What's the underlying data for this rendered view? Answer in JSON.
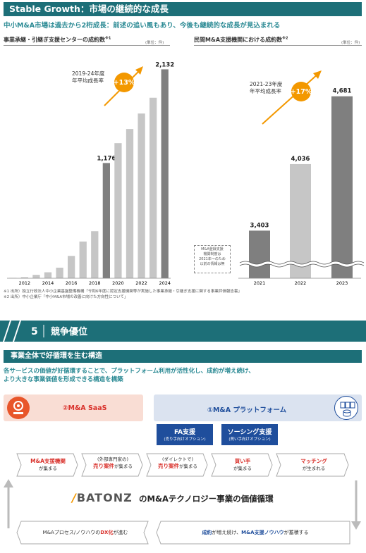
{
  "section_title": "Stable Growth：市場の継続的な成長",
  "lead": "中小M&A市場は過去から2桁成長：前述の追い風もあり、今後も継続的な成長が見込まれる",
  "chart_data": [
    {
      "type": "bar",
      "title": "事業承継・引継ぎ支援センターの成約数",
      "title_note": "※1",
      "unit": "(単位：件)",
      "categories": [
        "2011",
        "2012",
        "2013",
        "2014",
        "2015",
        "2016",
        "2017",
        "2018",
        "2019",
        "2020",
        "2021",
        "2022",
        "2023",
        "2024"
      ],
      "tick_labels": [
        "2012",
        "2014",
        "2016",
        "2018",
        "2020",
        "2022",
        "2024"
      ],
      "values": [
        4,
        11,
        35,
        61,
        108,
        228,
        375,
        480,
        1176,
        1379,
        1523,
        1681,
        1842,
        2132
      ],
      "labeled": {
        "2019": "1,176",
        "2024": "2,132"
      },
      "ylim": [
        0,
        2250
      ],
      "cagr_label": "2019-24年度\n年平均成長率",
      "cagr_value": "+13%"
    },
    {
      "type": "bar",
      "title": "民間M&A支援機関における成約数",
      "title_note": "※2",
      "unit": "(単位：件)",
      "categories": [
        "2021",
        "2022",
        "2023"
      ],
      "values": [
        3403,
        4036,
        4681
      ],
      "value_labels": [
        "3,403",
        "4,036",
        "4,681"
      ],
      "ylim": [
        2950,
        4900
      ],
      "axis_break": true,
      "note": "M&A登録支援\n機関制度は\n2021年～のため\n以前の情報は無",
      "cagr_label": "2021-23年度\n年平均成長率",
      "cagr_value": "+17%"
    }
  ],
  "footnotes": [
    "※1 出所）独立行政法人中小企業基盤整備機構「令和6年度に認定支援機関等が実施した事業承継・引継ぎ支援に関する事業評価報告書」",
    "※2 出所）中小企業庁「中小M&A市場の改善に向けた方向性について」"
  ],
  "section5": {
    "number": "5",
    "title": "競争優位"
  },
  "sub_title": "事業全体で好循環を生む構造",
  "sub_lead": [
    "各サービスの価値が好循環することで、プラットフォーム利用が活性化し、成約が増え続け、",
    "より大きな事業価値を形成できる構造を構築"
  ],
  "saas_label": "②M&A SaaS",
  "platform_label": "①M&A プラットフォーム",
  "options": [
    {
      "title": "FA支援",
      "sub": "(売り手向けオプション)"
    },
    {
      "title": "ソーシング支援",
      "sub": "(買い手向けオプション)"
    }
  ],
  "flow": [
    {
      "a": "M&A支援機関",
      "b": "が集まる"
    },
    {
      "a": "(外部専門家の)",
      "b": "売り案件",
      "c": "が集まる"
    },
    {
      "a": "(ダイレクトで)",
      "b": "売り案件",
      "c": "が集まる"
    },
    {
      "a": "買い手",
      "b": "が集まる"
    },
    {
      "a": "マッチング",
      "b": "が生まれる"
    }
  ],
  "logo": "BATONZ",
  "cycle_title": "のM&Aテクノロジー事業の価値循環",
  "bottom_left": {
    "a": "M&Aプロセス/ノウハウの",
    "b": "DX化",
    "c": "が進む"
  },
  "bottom_right": {
    "a": "成約",
    "b": "が増え続け、",
    "c": "M&A支援ノウハウ",
    "d": "が蓄積する"
  },
  "colors": {
    "teal": "#1d6f78",
    "orange": "#f39800",
    "bar_gray": "#c6c6c6",
    "bar_dark": "#7f7f7f",
    "red": "#d9312b",
    "blue": "#1f4e9c"
  }
}
